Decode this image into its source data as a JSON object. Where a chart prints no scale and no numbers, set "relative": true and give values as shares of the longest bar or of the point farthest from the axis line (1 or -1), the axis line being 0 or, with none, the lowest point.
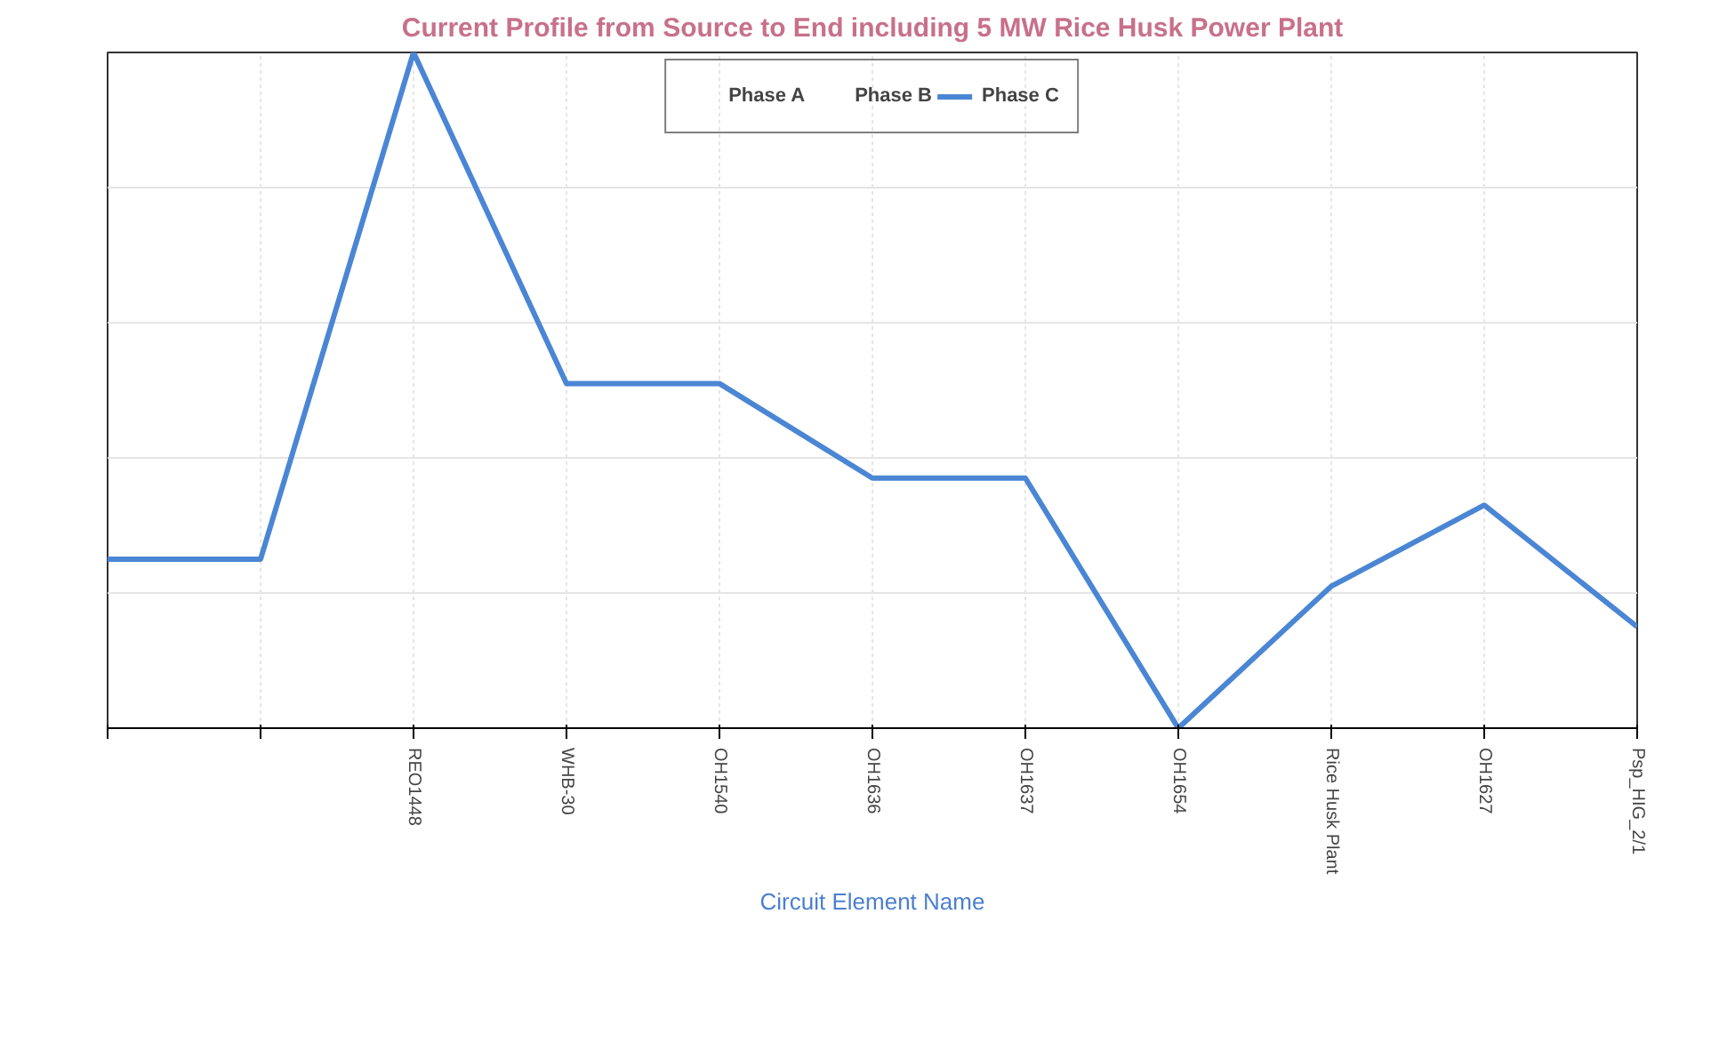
{
  "chart_data": {
    "type": "line",
    "title": "Current Profile from Source to End including 5 MW Rice Husk Power Plant",
    "xlabel": "Circuit Element Name",
    "categories": [
      null,
      null,
      "REO1448",
      "WHB-30",
      "OH1540",
      "OH1636",
      "OH1637",
      "OH1654",
      "Rice Husk Plant",
      "OH1627",
      "Psp_HIG_2/1"
    ],
    "relative": true,
    "series": [
      {
        "name": "Phase A",
        "color": "#1f1f1f",
        "values": [
          null,
          null,
          null,
          null,
          null,
          null,
          null,
          null,
          null,
          null,
          null
        ]
      },
      {
        "name": "Phase B",
        "color": "#1f1f1f",
        "values": [
          null,
          null,
          null,
          null,
          null,
          null,
          null,
          null,
          null,
          null,
          null
        ]
      },
      {
        "name": "Phase C",
        "color": "#4a86d4",
        "values": [
          0.25,
          0.25,
          1.0,
          0.51,
          0.51,
          0.37,
          0.37,
          0.0,
          0.21,
          0.33,
          0.15
        ]
      }
    ],
    "grid": true,
    "legend": "top",
    "marker": "none",
    "line_style": "solid"
  }
}
